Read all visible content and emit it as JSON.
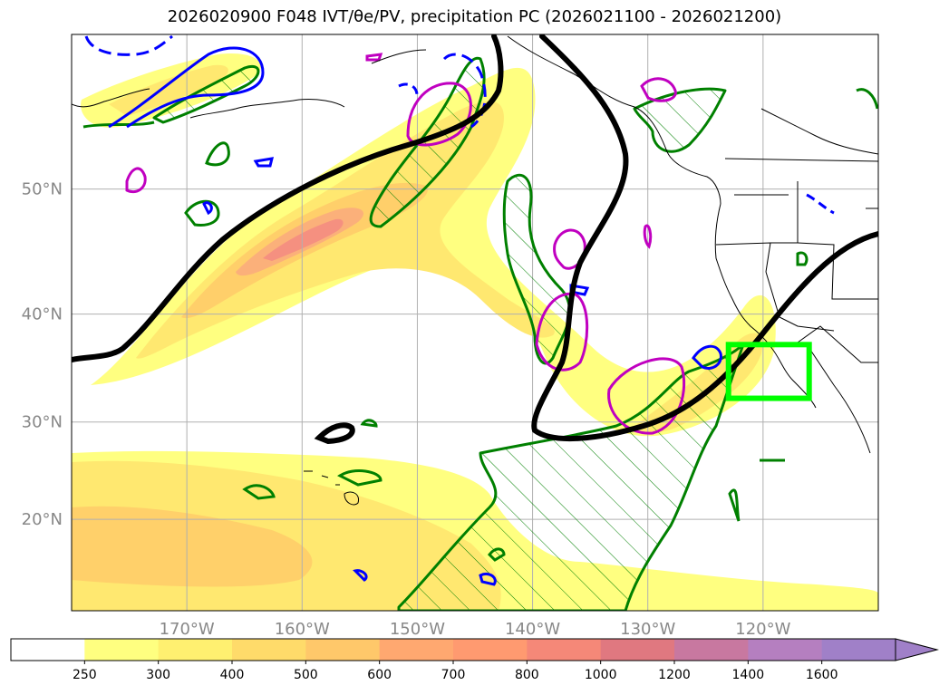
{
  "title": "2026020900 F048 IVT/θe/PV, precipitation PC (2026021100 - 2026021200)",
  "map": {
    "lon_range": [
      -180,
      -110
    ],
    "lat_range": [
      10,
      60
    ],
    "lat_ticks": [
      {
        "value": 50,
        "label": "50°N"
      },
      {
        "value": 40,
        "label": "40°N"
      },
      {
        "value": 30,
        "label": "30°N"
      },
      {
        "value": 20,
        "label": "20°N"
      }
    ],
    "lon_ticks": [
      {
        "value": -170,
        "label": "170°W"
      },
      {
        "value": -160,
        "label": "160°W"
      },
      {
        "value": -150,
        "label": "150°W"
      },
      {
        "value": -140,
        "label": "140°W"
      },
      {
        "value": -130,
        "label": "130°W"
      },
      {
        "value": -120,
        "label": "120°W"
      }
    ],
    "grid": true,
    "highlight_box": {
      "lon_min": -123,
      "lon_max": -116,
      "lat_min": 32.3,
      "lat_max": 37.3,
      "color": "#00ff00"
    },
    "colors": {
      "ivt": [
        "#ffff80",
        "#fff070",
        "#ffdb6a",
        "#ffc86a",
        "#ffa870",
        "#ff9070",
        "#f07878",
        "#c878a0",
        "#b080c0",
        "#a080c8"
      ],
      "pv_contour": "#000000",
      "precip_contour": "#008000",
      "theta_cold": "#0000ff",
      "theta_warm": "#c000c0",
      "coast": "#000000"
    }
  },
  "colorbar": {
    "levels": [
      {
        "label": "250",
        "color": "#ffff80"
      },
      {
        "label": "300",
        "color": "#fff070"
      },
      {
        "label": "400",
        "color": "#ffdb6a"
      },
      {
        "label": "500",
        "color": "#ffc86a"
      },
      {
        "label": "600",
        "color": "#ffa870"
      },
      {
        "label": "700",
        "color": "#ff9a70"
      },
      {
        "label": "800",
        "color": "#f58878"
      },
      {
        "label": "1000",
        "color": "#e07880"
      },
      {
        "label": "1200",
        "color": "#c878a0"
      },
      {
        "label": "1400",
        "color": "#b57fc0"
      },
      {
        "label": "1600",
        "color": "#a080c8"
      }
    ],
    "first_color": "#ffffff"
  }
}
